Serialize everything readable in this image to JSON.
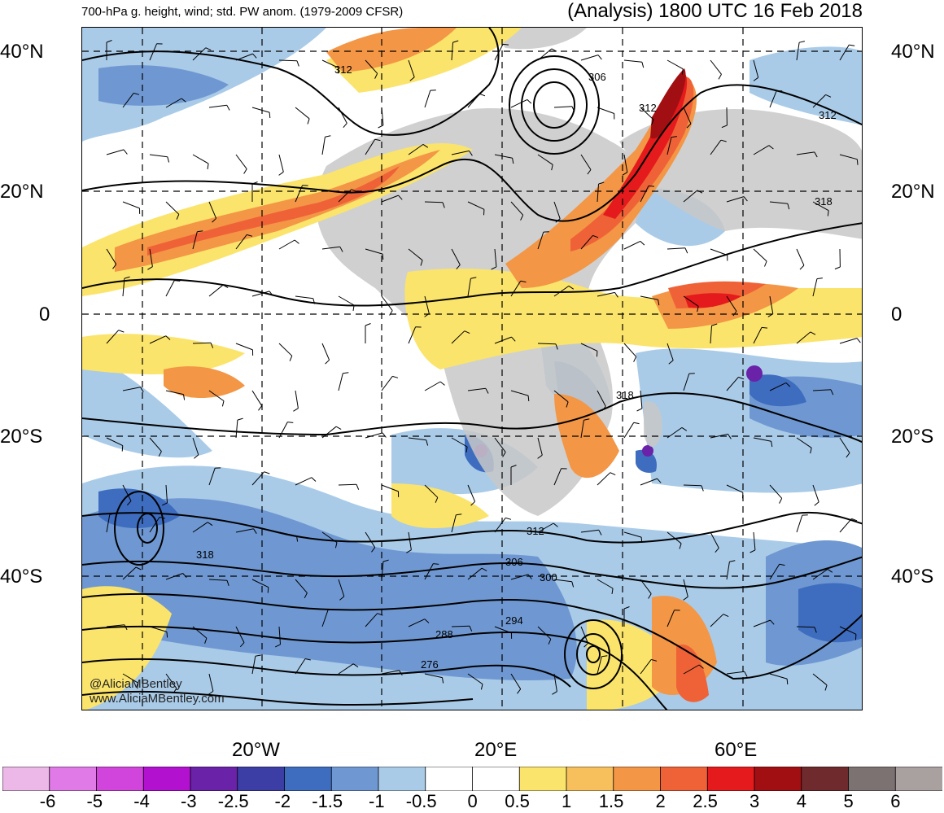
{
  "header": {
    "left_title": "700-hPa g. height, wind; std. PW anom. (1979-2009 CFSR)",
    "right_title": "(Analysis) 1800 UTC 16 Feb 2018"
  },
  "axes": {
    "lat_labels": [
      "40°N",
      "20°N",
      "0",
      "20°S",
      "40°S"
    ],
    "lon_labels": [
      "20°W",
      "20°E",
      "60°E"
    ]
  },
  "contours": {
    "labels": [
      "312",
      "306",
      "312",
      "312",
      "318",
      "318",
      "318",
      "312",
      "306",
      "300",
      "294",
      "288",
      "276"
    ]
  },
  "credits": {
    "twitter": "@AliciaMBentley",
    "website": "www.AliciaMBentley.com"
  },
  "colorbar": {
    "labels": [
      "-6",
      "-5",
      "-4",
      "-3",
      "-2.5",
      "-2",
      "-1.5",
      "-1",
      "-0.5",
      "0",
      "0.5",
      "1",
      "1.5",
      "2",
      "2.5",
      "3",
      "4",
      "5",
      "6"
    ],
    "colors": [
      "#ecb8e8",
      "#e07ae6",
      "#d245dd",
      "#b311d0",
      "#6a22a8",
      "#3c3ea6",
      "#3e6dbf",
      "#6f98d2",
      "#a9cbe8",
      "#ffffff",
      "#ffffff",
      "#fbe46b",
      "#f7c05c",
      "#f39646",
      "#ef6237",
      "#e41a1c",
      "#a20f13",
      "#6e2a2c",
      "#7d7272",
      "#a9a0a0"
    ]
  }
}
